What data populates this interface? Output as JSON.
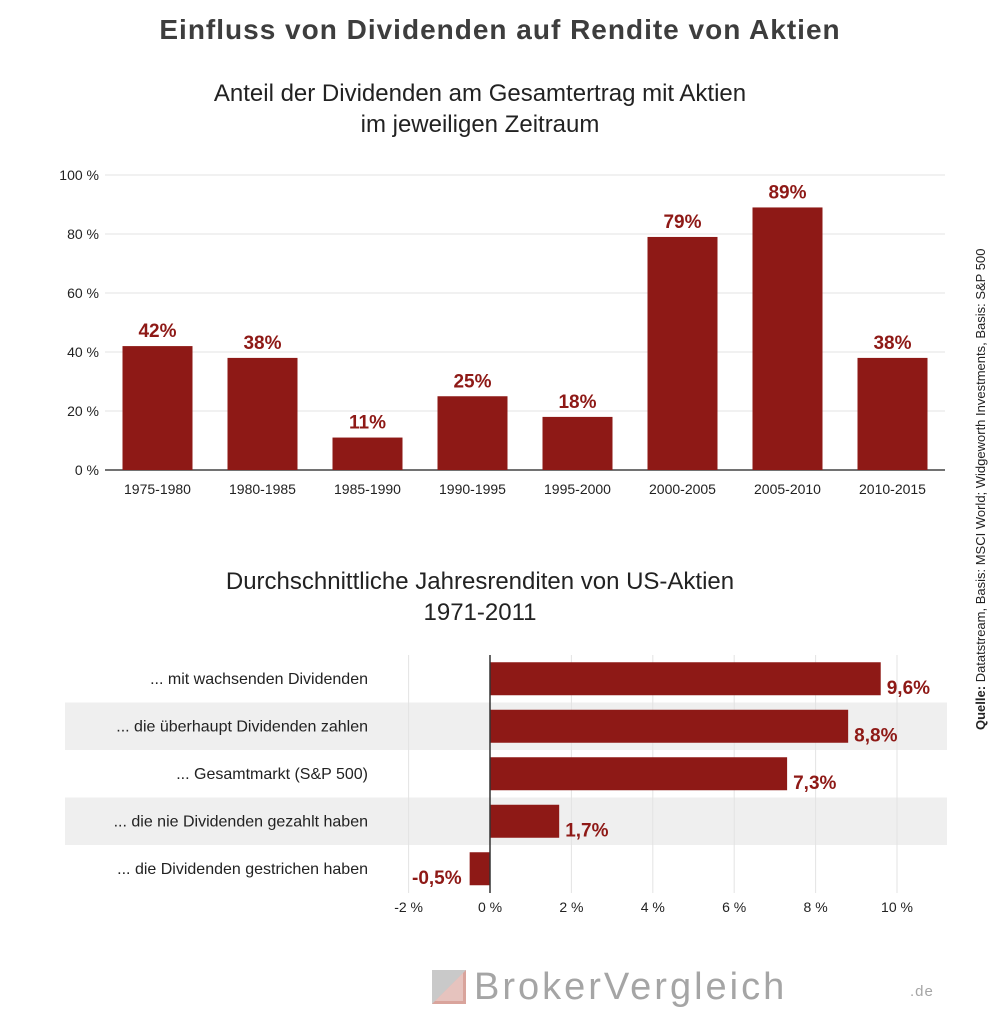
{
  "header": {
    "title": "Einfluss von Dividenden auf Rendite von Aktien"
  },
  "chart_data": [
    {
      "type": "bar",
      "title_line1": "Anteil der Dividenden am Gesamtertrag mit Aktien",
      "title_line2": "im jeweiligen Zeitraum",
      "categories": [
        "1975-1980",
        "1980-1985",
        "1985-1990",
        "1990-1995",
        "1995-2000",
        "2000-2005",
        "2005-2010",
        "2010-2015"
      ],
      "values": [
        42,
        38,
        11,
        25,
        18,
        79,
        89,
        38
      ],
      "data_labels": [
        "42%",
        "38%",
        "11%",
        "25%",
        "18%",
        "79%",
        "89%",
        "38%"
      ],
      "ylim": [
        0,
        100
      ],
      "yticks": [
        0,
        20,
        40,
        60,
        80,
        100
      ],
      "ytick_labels": [
        "0 %",
        "20 %",
        "40 %",
        "60 %",
        "80 %",
        "100 %"
      ],
      "grid": true,
      "bar_color": "#8e1916",
      "label_color": "#8e1916"
    },
    {
      "type": "bar",
      "orientation": "horizontal",
      "title_line1": "Durchschnittliche Jahresrenditen von US-Aktien",
      "title_line2": "1971-2011",
      "categories": [
        "... mit wachsenden Dividenden",
        "... die überhaupt Dividenden zahlen",
        "... Gesamtmarkt (S&P 500)",
        "... die nie Dividenden gezahlt haben",
        "... die Dividenden gestrichen haben"
      ],
      "values": [
        9.6,
        8.8,
        7.3,
        1.7,
        -0.5
      ],
      "data_labels": [
        "9,6%",
        "8,8%",
        "7,3%",
        "1,7%",
        "-0,5%"
      ],
      "xlim": [
        -2,
        11
      ],
      "xticks": [
        -2,
        0,
        2,
        4,
        6,
        8,
        10
      ],
      "xtick_labels": [
        "-2 %",
        "0 %",
        "2 %",
        "4 %",
        "6 %",
        "8 %",
        "10 %"
      ],
      "grid": true,
      "bar_color": "#8e1916",
      "label_color": "#8e1916",
      "stripe_color": "#efefef"
    }
  ],
  "source": {
    "label": "Quelle:",
    "text": " Datatstream, Basis: MSCI World; Widgeworth Investments, Basis: S&P 500"
  },
  "brand": {
    "name": "BrokerVergleich",
    "tld": ".de"
  }
}
